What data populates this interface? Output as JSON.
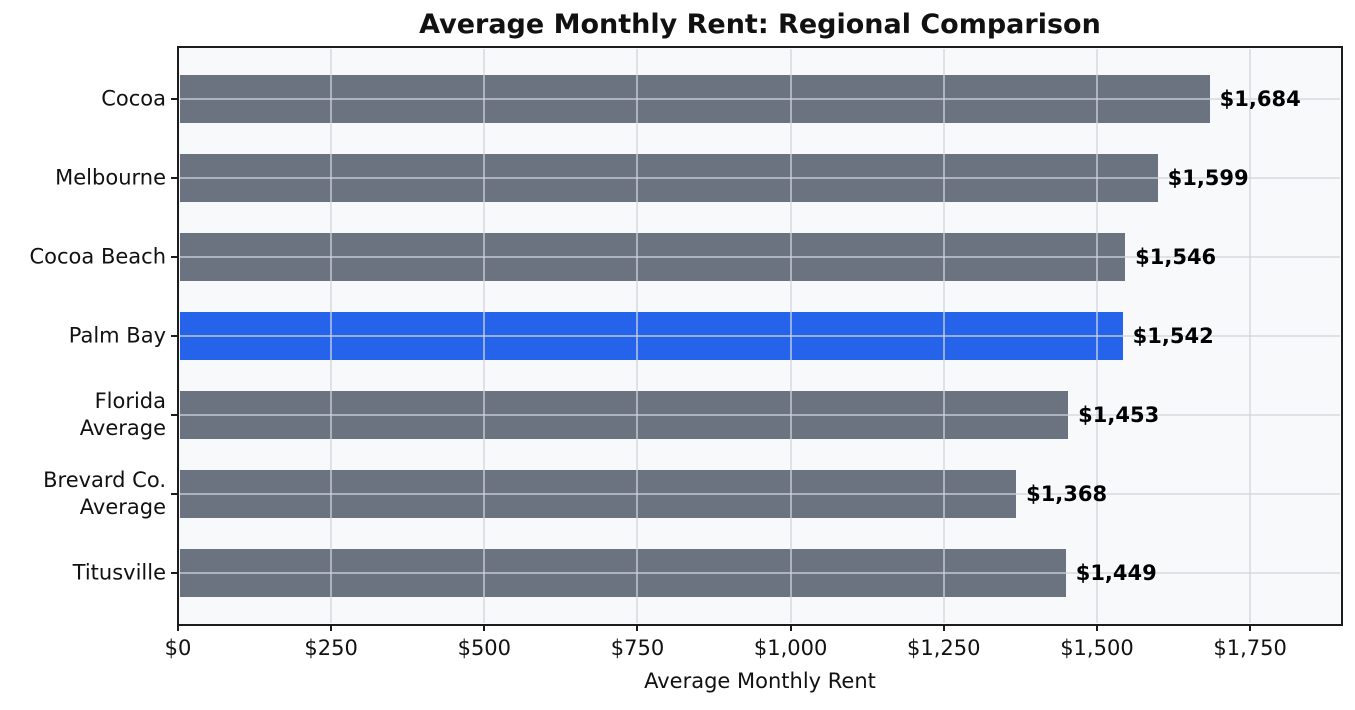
{
  "chart_data": {
    "type": "bar",
    "orientation": "horizontal",
    "title": "Average Monthly Rent: Regional Comparison",
    "xlabel": "Average Monthly Rent",
    "ylabel": "",
    "categories": [
      "Cocoa",
      "Melbourne",
      "Cocoa Beach",
      "Palm Bay",
      "Florida\nAverage",
      "Brevard Co.\nAverage",
      "Titusville"
    ],
    "values": [
      1684,
      1599,
      1546,
      1542,
      1453,
      1368,
      1449
    ],
    "value_labels": [
      "$1,684",
      "$1,599",
      "$1,546",
      "$1,542",
      "$1,453",
      "$1,368",
      "$1,449"
    ],
    "highlighted_category": "Palm Bay",
    "highlight_index": 3,
    "xlim": [
      0,
      1900
    ],
    "xticks": [
      0,
      250,
      500,
      750,
      1000,
      1250,
      1500,
      1750
    ],
    "xtick_labels": [
      "$0",
      "$250",
      "$500",
      "$750",
      "$1,000",
      "$1,250",
      "$1,500",
      "$1,750"
    ],
    "grid": true,
    "legend": "none",
    "colors": {
      "bar_default": "#6b7280",
      "bar_highlight": "#2563eb",
      "plot_background": "#f8f9fa",
      "grid": "rgba(208,213,221,0.65)",
      "axis_border": "#1c1c1c",
      "text": "#111111"
    }
  }
}
